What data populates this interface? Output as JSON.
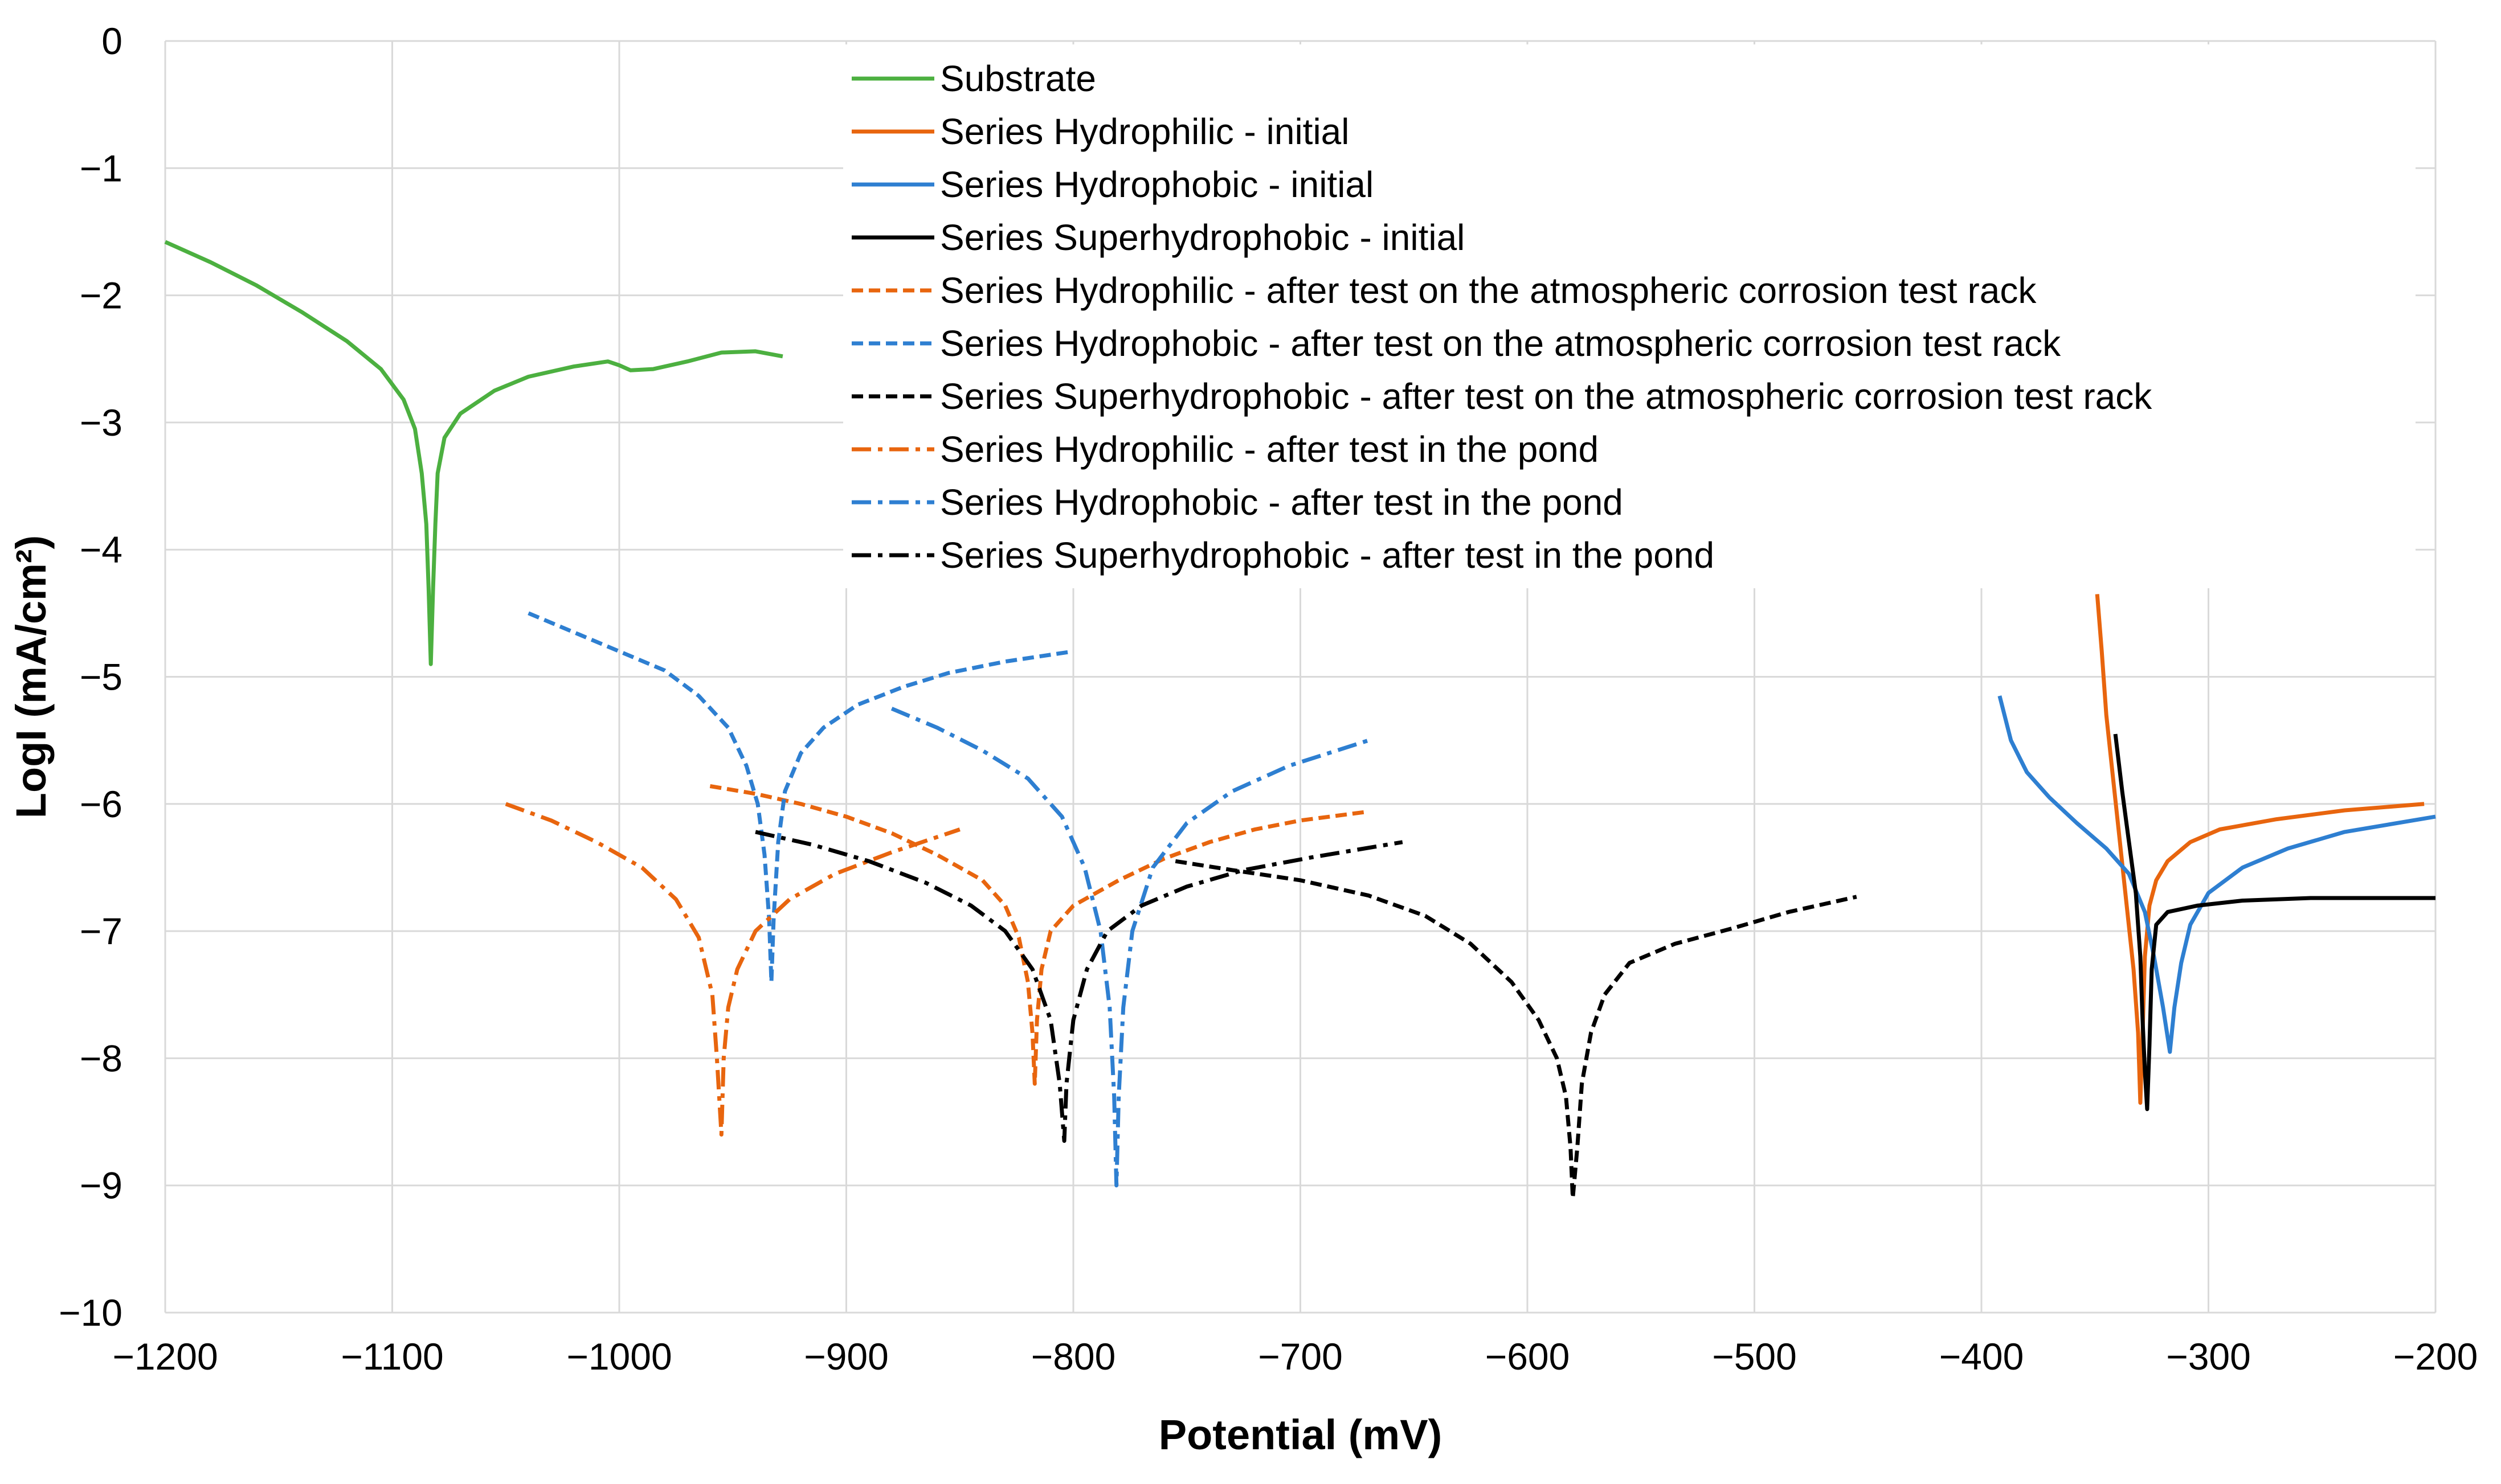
{
  "chart_data": {
    "type": "line",
    "title": "",
    "xlabel": "Potential (mV)",
    "ylabel": "LogI (mA/cm²)",
    "xlim": [
      -1200,
      -200
    ],
    "ylim": [
      -10,
      0
    ],
    "xticks": [
      -1200,
      -1100,
      -1000,
      -900,
      -800,
      -700,
      -600,
      -500,
      -400,
      -300,
      -200
    ],
    "yticks": [
      0,
      -1,
      -2,
      -3,
      -4,
      -5,
      -6,
      -7,
      -8,
      -9,
      -10
    ],
    "xtick_labels": [
      "−1200",
      "−1100",
      "−1000",
      "−900",
      "−800",
      "−700",
      "−600",
      "−500",
      "−400",
      "−300",
      "−200"
    ],
    "ytick_labels": [
      "0",
      "−1",
      "−2",
      "−3",
      "−4",
      "−5",
      "−6",
      "−7",
      "−8",
      "−9",
      "−10"
    ],
    "grid": true,
    "legend_position": "top-center",
    "series": [
      {
        "name": "Substrate",
        "color": "#4CB040",
        "dash": "solid",
        "points": [
          [
            -1200,
            -1.58
          ],
          [
            -1180,
            -1.74
          ],
          [
            -1160,
            -1.92
          ],
          [
            -1140,
            -2.13
          ],
          [
            -1120,
            -2.36
          ],
          [
            -1105,
            -2.58
          ],
          [
            -1095,
            -2.82
          ],
          [
            -1090,
            -3.05
          ],
          [
            -1087,
            -3.4
          ],
          [
            -1085,
            -3.8
          ],
          [
            -1084,
            -4.3
          ],
          [
            -1083,
            -4.9
          ],
          [
            -1082,
            -4.3
          ],
          [
            -1081,
            -3.8
          ],
          [
            -1080,
            -3.4
          ],
          [
            -1077,
            -3.12
          ],
          [
            -1070,
            -2.93
          ],
          [
            -1055,
            -2.75
          ],
          [
            -1040,
            -2.64
          ],
          [
            -1020,
            -2.56
          ],
          [
            -1005,
            -2.52
          ],
          [
            -1000,
            -2.55
          ],
          [
            -995,
            -2.59
          ],
          [
            -985,
            -2.58
          ],
          [
            -970,
            -2.52
          ],
          [
            -955,
            -2.45
          ],
          [
            -940,
            -2.44
          ],
          [
            -928,
            -2.48
          ]
        ]
      },
      {
        "name": "Series Hydrophilic - initial",
        "color": "#E8650E",
        "dash": "solid",
        "points": [
          [
            -349,
            -4.35
          ],
          [
            -347,
            -4.8
          ],
          [
            -345,
            -5.3
          ],
          [
            -342,
            -5.8
          ],
          [
            -339,
            -6.3
          ],
          [
            -336,
            -6.8
          ],
          [
            -333,
            -7.3
          ],
          [
            -331,
            -7.8
          ],
          [
            -330,
            -8.35
          ],
          [
            -329,
            -7.8
          ],
          [
            -328,
            -7.2
          ],
          [
            -326,
            -6.8
          ],
          [
            -323,
            -6.6
          ],
          [
            -318,
            -6.45
          ],
          [
            -308,
            -6.3
          ],
          [
            -295,
            -6.2
          ],
          [
            -270,
            -6.12
          ],
          [
            -240,
            -6.05
          ],
          [
            -205,
            -6.0
          ]
        ]
      },
      {
        "name": "Series Hydrophobic - initial",
        "color": "#2E7FD1",
        "dash": "solid",
        "points": [
          [
            -392,
            -5.15
          ],
          [
            -387,
            -5.5
          ],
          [
            -380,
            -5.75
          ],
          [
            -370,
            -5.95
          ],
          [
            -358,
            -6.15
          ],
          [
            -345,
            -6.35
          ],
          [
            -335,
            -6.55
          ],
          [
            -328,
            -6.85
          ],
          [
            -324,
            -7.2
          ],
          [
            -320,
            -7.6
          ],
          [
            -317,
            -7.95
          ],
          [
            -315,
            -7.6
          ],
          [
            -312,
            -7.25
          ],
          [
            -308,
            -6.95
          ],
          [
            -300,
            -6.7
          ],
          [
            -285,
            -6.5
          ],
          [
            -265,
            -6.35
          ],
          [
            -240,
            -6.22
          ],
          [
            -200,
            -6.1
          ]
        ]
      },
      {
        "name": "Series Superhydrophobic - initial",
        "color": "#000000",
        "dash": "solid",
        "points": [
          [
            -341,
            -5.45
          ],
          [
            -338,
            -5.9
          ],
          [
            -335,
            -6.3
          ],
          [
            -332,
            -6.7
          ],
          [
            -330,
            -7.2
          ],
          [
            -329,
            -7.7
          ],
          [
            -328,
            -8.1
          ],
          [
            -327,
            -8.4
          ],
          [
            -326,
            -7.9
          ],
          [
            -325,
            -7.3
          ],
          [
            -323,
            -6.95
          ],
          [
            -318,
            -6.85
          ],
          [
            -305,
            -6.8
          ],
          [
            -285,
            -6.76
          ],
          [
            -255,
            -6.74
          ],
          [
            -225,
            -6.74
          ],
          [
            -200,
            -6.74
          ]
        ]
      },
      {
        "name": "Series Hydrophilic - after test on the atmospheric corrosion test rack",
        "color": "#E8650E",
        "dash": "dashed",
        "points": [
          [
            -960,
            -5.86
          ],
          [
            -940,
            -5.92
          ],
          [
            -920,
            -6.0
          ],
          [
            -900,
            -6.1
          ],
          [
            -880,
            -6.23
          ],
          [
            -860,
            -6.4
          ],
          [
            -840,
            -6.6
          ],
          [
            -830,
            -6.8
          ],
          [
            -824,
            -7.05
          ],
          [
            -820,
            -7.4
          ],
          [
            -818,
            -7.8
          ],
          [
            -817,
            -8.2
          ],
          [
            -816,
            -7.7
          ],
          [
            -814,
            -7.3
          ],
          [
            -810,
            -7.0
          ],
          [
            -800,
            -6.8
          ],
          [
            -780,
            -6.6
          ],
          [
            -760,
            -6.43
          ],
          [
            -740,
            -6.3
          ],
          [
            -720,
            -6.2
          ],
          [
            -700,
            -6.13
          ],
          [
            -670,
            -6.06
          ]
        ]
      },
      {
        "name": "Series Hydrophobic - after test on the atmospheric corrosion test rack",
        "color": "#2E7FD1",
        "dash": "dashed",
        "points": [
          [
            -1040,
            -4.5
          ],
          [
            -1020,
            -4.65
          ],
          [
            -1000,
            -4.8
          ],
          [
            -980,
            -4.95
          ],
          [
            -965,
            -5.15
          ],
          [
            -952,
            -5.4
          ],
          [
            -944,
            -5.7
          ],
          [
            -939,
            -6.0
          ],
          [
            -936,
            -6.4
          ],
          [
            -934,
            -6.9
          ],
          [
            -933,
            -7.4
          ],
          [
            -932,
            -6.9
          ],
          [
            -930,
            -6.3
          ],
          [
            -927,
            -5.9
          ],
          [
            -920,
            -5.6
          ],
          [
            -910,
            -5.4
          ],
          [
            -895,
            -5.22
          ],
          [
            -875,
            -5.08
          ],
          [
            -855,
            -4.97
          ],
          [
            -830,
            -4.88
          ],
          [
            -800,
            -4.8
          ]
        ]
      },
      {
        "name": "Series Superhydrophobic - after test on the atmospheric corrosion test rack",
        "color": "#000000",
        "dash": "dashed",
        "points": [
          [
            -755,
            -6.45
          ],
          [
            -730,
            -6.52
          ],
          [
            -700,
            -6.6
          ],
          [
            -670,
            -6.72
          ],
          [
            -645,
            -6.88
          ],
          [
            -625,
            -7.1
          ],
          [
            -607,
            -7.4
          ],
          [
            -595,
            -7.7
          ],
          [
            -587,
            -8.0
          ],
          [
            -583,
            -8.3
          ],
          [
            -581,
            -8.7
          ],
          [
            -580,
            -9.1
          ],
          [
            -578,
            -8.7
          ],
          [
            -576,
            -8.2
          ],
          [
            -572,
            -7.8
          ],
          [
            -566,
            -7.5
          ],
          [
            -555,
            -7.25
          ],
          [
            -535,
            -7.1
          ],
          [
            -510,
            -6.98
          ],
          [
            -485,
            -6.85
          ],
          [
            -455,
            -6.73
          ]
        ]
      },
      {
        "name": "Series Hydrophilic - after test in the pond",
        "color": "#E8650E",
        "dash": "dashdot",
        "points": [
          [
            -1050,
            -6.0
          ],
          [
            -1030,
            -6.13
          ],
          [
            -1010,
            -6.3
          ],
          [
            -990,
            -6.5
          ],
          [
            -975,
            -6.75
          ],
          [
            -965,
            -7.05
          ],
          [
            -959,
            -7.5
          ],
          [
            -957,
            -8.0
          ],
          [
            -955,
            -8.6
          ],
          [
            -954,
            -8.0
          ],
          [
            -952,
            -7.6
          ],
          [
            -948,
            -7.3
          ],
          [
            -940,
            -7.0
          ],
          [
            -925,
            -6.75
          ],
          [
            -905,
            -6.55
          ],
          [
            -880,
            -6.38
          ],
          [
            -850,
            -6.2
          ]
        ]
      },
      {
        "name": "Series Hydrophobic - after test in the pond",
        "color": "#2E7FD1",
        "dash": "dashdot",
        "points": [
          [
            -880,
            -5.25
          ],
          [
            -860,
            -5.4
          ],
          [
            -840,
            -5.58
          ],
          [
            -820,
            -5.8
          ],
          [
            -805,
            -6.1
          ],
          [
            -795,
            -6.5
          ],
          [
            -788,
            -7.0
          ],
          [
            -784,
            -7.6
          ],
          [
            -782,
            -8.3
          ],
          [
            -781,
            -9.0
          ],
          [
            -780,
            -8.3
          ],
          [
            -778,
            -7.6
          ],
          [
            -774,
            -7.0
          ],
          [
            -765,
            -6.5
          ],
          [
            -750,
            -6.15
          ],
          [
            -730,
            -5.9
          ],
          [
            -705,
            -5.7
          ],
          [
            -670,
            -5.5
          ]
        ]
      },
      {
        "name": "Series Superhydrophobic - after test in the pond",
        "color": "#000000",
        "dash": "dashdot",
        "points": [
          [
            -940,
            -6.22
          ],
          [
            -915,
            -6.32
          ],
          [
            -890,
            -6.45
          ],
          [
            -865,
            -6.62
          ],
          [
            -845,
            -6.8
          ],
          [
            -830,
            -7.0
          ],
          [
            -818,
            -7.3
          ],
          [
            -810,
            -7.7
          ],
          [
            -806,
            -8.2
          ],
          [
            -804,
            -8.65
          ],
          [
            -803,
            -8.2
          ],
          [
            -800,
            -7.7
          ],
          [
            -794,
            -7.3
          ],
          [
            -785,
            -7.0
          ],
          [
            -770,
            -6.8
          ],
          [
            -750,
            -6.65
          ],
          [
            -725,
            -6.52
          ],
          [
            -695,
            -6.42
          ],
          [
            -655,
            -6.3
          ]
        ]
      }
    ]
  }
}
